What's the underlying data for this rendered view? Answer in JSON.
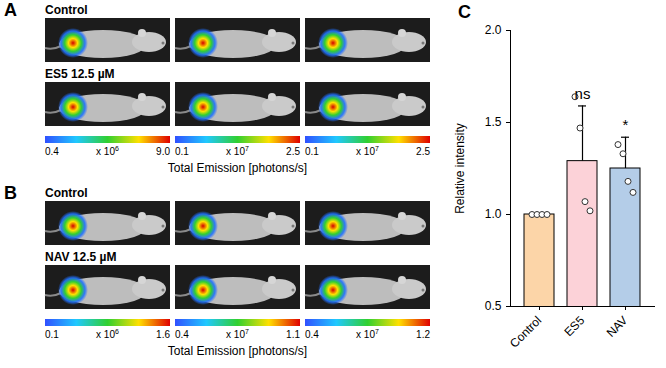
{
  "chart_data": {
    "type": "bar",
    "panel_label": "C",
    "categories": [
      "Control",
      "ES5",
      "NAV"
    ],
    "values": [
      1,
      1.29,
      1.25
    ],
    "errors": [
      0,
      0.3,
      0.17
    ],
    "points": [
      [
        1,
        1,
        1,
        1
      ],
      [
        1.64,
        1.47,
        1.07,
        1.02
      ],
      [
        1.38,
        1.33,
        1.18,
        1.12
      ]
    ],
    "colors": [
      "#fcd5a8",
      "#fcd2d8",
      "#b4cde8"
    ],
    "annotations": [
      null,
      "ns",
      "*"
    ],
    "y_label": "Relative intensity",
    "ylim": [
      0.5,
      2
    ],
    "yticks": [
      0.5,
      {
        "value": 1,
        "label": "1.0"
      },
      1.5,
      {
        "value": 2,
        "label": "2.0"
      }
    ]
  },
  "image_panels": [
    {
      "label": "A",
      "rows": [
        "Control",
        "ES5 12.5 µM"
      ],
      "colorbars": [
        {
          "range": [
            0.4,
            9
          ],
          "ticks": [
            0.4,
            {
              "value": 9,
              "label": "9.0"
            }
          ],
          "multiplier": "x 10",
          "exponent": 6
        },
        {
          "range": [
            0.1,
            2.5
          ],
          "ticks": [
            0.1,
            2.5
          ],
          "multiplier": "x 10",
          "exponent": 7
        },
        {
          "range": [
            0.1,
            2.5
          ],
          "ticks": [
            0.1,
            2.5
          ],
          "multiplier": "x 10",
          "exponent": 7
        }
      ],
      "colorbar_title": "Total Emission [photons/s]"
    },
    {
      "label": "B",
      "rows": [
        "Control",
        "NAV 12.5 µM"
      ],
      "colorbars": [
        {
          "range": [
            0.1,
            1.6
          ],
          "ticks": [
            0.1,
            1.6
          ],
          "multiplier": "x 10",
          "exponent": 6
        },
        {
          "range": [
            0.4,
            1.1
          ],
          "ticks": [
            0.4,
            1.1
          ],
          "multiplier": "x 10",
          "exponent": 7
        },
        {
          "range": [
            0.4,
            1.2
          ],
          "ticks": [
            0.4,
            1.2
          ],
          "multiplier": "x 10",
          "exponent": 7
        }
      ],
      "colorbar_title": "Total Emission [photons/s]"
    }
  ]
}
